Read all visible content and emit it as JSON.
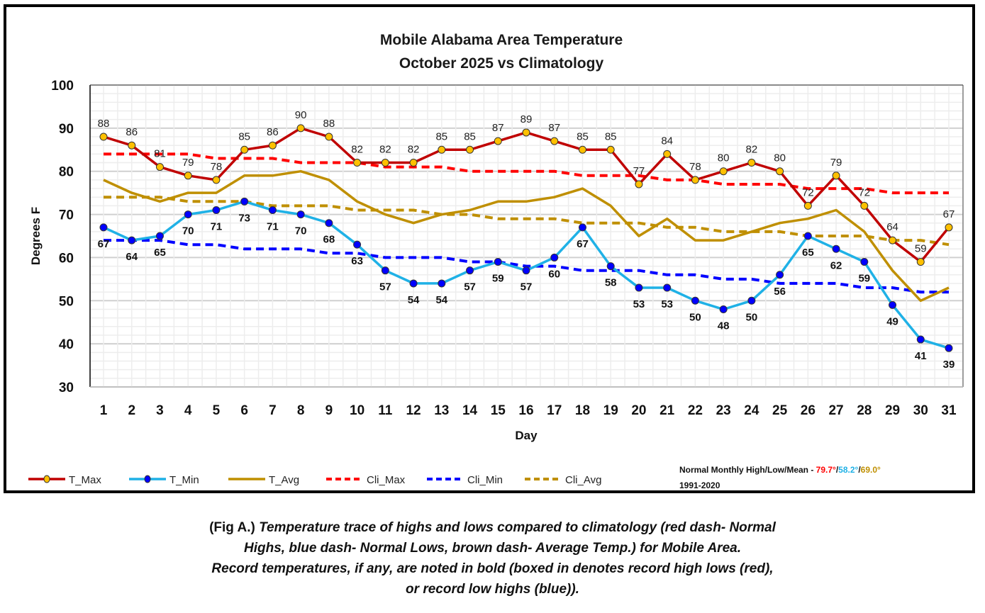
{
  "chart_data": {
    "type": "line",
    "title": "Mobile Alabama Area Temperature",
    "subtitle": "October 2025 vs Climatology",
    "xlabel": "Day",
    "ylabel": "Degrees F",
    "ylim": [
      30,
      100
    ],
    "yticks": [
      30,
      40,
      50,
      60,
      70,
      80,
      90,
      100
    ],
    "grid": true,
    "legend_position": "bottom",
    "x": [
      1,
      2,
      3,
      4,
      5,
      6,
      7,
      8,
      9,
      10,
      11,
      12,
      13,
      14,
      15,
      16,
      17,
      18,
      19,
      20,
      21,
      22,
      23,
      24,
      25,
      26,
      27,
      28,
      29,
      30,
      31
    ],
    "series": [
      {
        "name": "T_Max",
        "color": "#c00000",
        "marker_color": "#ffc000",
        "style": "solid",
        "labels": true,
        "values": [
          88,
          86,
          81,
          79,
          78,
          85,
          86,
          90,
          88,
          82,
          82,
          82,
          85,
          85,
          87,
          89,
          87,
          85,
          85,
          77,
          84,
          78,
          80,
          82,
          80,
          72,
          79,
          72,
          64,
          59,
          67
        ]
      },
      {
        "name": "T_Min",
        "color": "#1fb1e6",
        "marker_color": "#0000ff",
        "style": "solid",
        "labels": true,
        "values": [
          67,
          64,
          65,
          70,
          71,
          73,
          71,
          70,
          68,
          63,
          57,
          54,
          54,
          57,
          59,
          57,
          60,
          67,
          58,
          53,
          53,
          50,
          48,
          50,
          56,
          65,
          62,
          59,
          49,
          41,
          39
        ]
      },
      {
        "name": "T_Avg",
        "color": "#bf8f00",
        "style": "solid",
        "labels": false,
        "values": [
          78,
          75,
          73,
          75,
          75,
          79,
          79,
          80,
          78,
          73,
          70,
          68,
          70,
          71,
          73,
          73,
          74,
          76,
          72,
          65,
          69,
          64,
          64,
          66,
          68,
          69,
          71,
          66,
          57,
          50,
          53
        ]
      },
      {
        "name": "Cli_Max",
        "color": "#ff0000",
        "style": "dashed",
        "labels": false,
        "values": [
          84,
          84,
          84,
          84,
          83,
          83,
          83,
          82,
          82,
          82,
          81,
          81,
          81,
          80,
          80,
          80,
          80,
          79,
          79,
          79,
          78,
          78,
          77,
          77,
          77,
          76,
          76,
          76,
          75,
          75,
          75
        ]
      },
      {
        "name": "Cli_Min",
        "color": "#0000ff",
        "style": "dashed",
        "labels": false,
        "values": [
          64,
          64,
          64,
          63,
          63,
          62,
          62,
          62,
          61,
          61,
          60,
          60,
          60,
          59,
          59,
          58,
          58,
          57,
          57,
          57,
          56,
          56,
          55,
          55,
          54,
          54,
          54,
          53,
          53,
          52,
          52
        ]
      },
      {
        "name": "Cli_Avg",
        "color": "#bf8f00",
        "style": "dashed",
        "labels": false,
        "values": [
          74,
          74,
          74,
          73,
          73,
          73,
          72,
          72,
          72,
          71,
          71,
          71,
          70,
          70,
          69,
          69,
          69,
          68,
          68,
          68,
          67,
          67,
          66,
          66,
          66,
          65,
          65,
          65,
          64,
          64,
          63
        ]
      }
    ],
    "annotation": {
      "prefix": "Normal Monthly High/Low/Mean - ",
      "high": "79.7°",
      "high_color": "#ff0000",
      "low": "58.2°",
      "low_color": "#1fb1e6",
      "mean": "69.0°",
      "mean_color": "#bf8f00",
      "separator": "/",
      "period": "1991-2020"
    }
  },
  "caption": {
    "lead": "(Fig A.) ",
    "lines": [
      "Temperature trace of highs and lows compared to climatology (red dash- Normal",
      "Highs, blue dash- Normal Lows, brown dash- Average Temp.) for Mobile Area.",
      "Record temperatures, if any, are noted in bold (boxed in denotes record high lows (red),",
      "or record low highs (blue))."
    ]
  }
}
